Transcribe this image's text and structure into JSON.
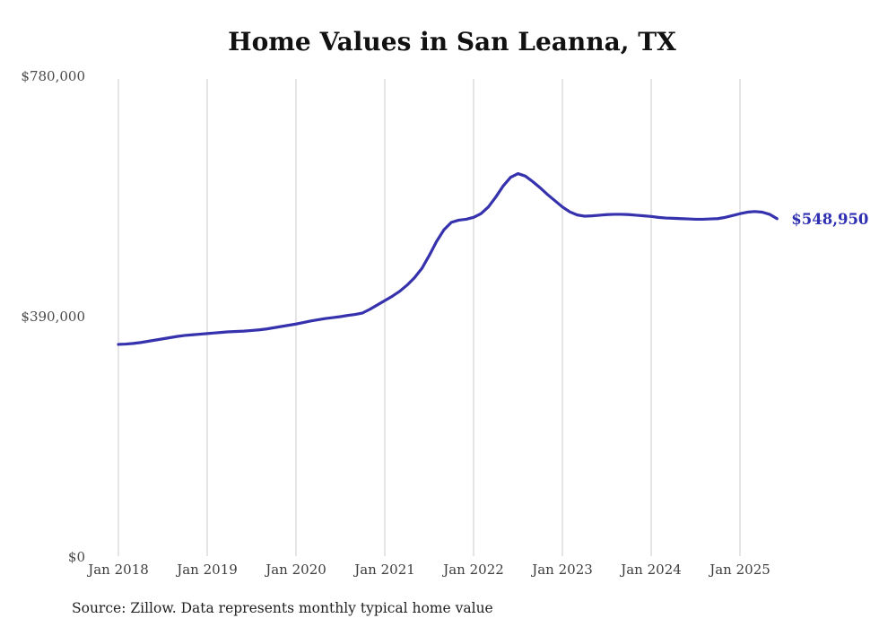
{
  "chart_data": {
    "type": "line",
    "title": "Home Values in San Leanna, TX",
    "xlabel": "",
    "ylabel": "",
    "ylim": [
      0,
      780000
    ],
    "grid": "vertical-only",
    "legend": "none",
    "line_color": "#3632ad",
    "end_label_color": "#2f2fb2",
    "gridline_color": "#cbcbcb",
    "end_label": "$548,950",
    "source": "Source: Zillow. Data represents monthly typical home value",
    "x_ticks": [
      "Jan 2018",
      "Jan 2019",
      "Jan 2020",
      "Jan 2021",
      "Jan 2022",
      "Jan 2023",
      "Jan 2024",
      "Jan 2025"
    ],
    "y_ticks": [
      {
        "label": "$780,000",
        "value": 780000
      },
      {
        "label": "$390,000",
        "value": 390000
      },
      {
        "label": "$0",
        "value": 0
      }
    ],
    "series": [
      {
        "name": "Typical home value (USD)",
        "start": "Jan 2018",
        "end": "Jun 2025",
        "frequency": "monthly",
        "values": [
          345000,
          345500,
          346500,
          348000,
          350000,
          352000,
          354000,
          356000,
          358000,
          359500,
          360500,
          361500,
          362500,
          363500,
          364500,
          365500,
          366000,
          366500,
          367500,
          368500,
          370000,
          372000,
          374000,
          376000,
          378000,
          380500,
          383000,
          385000,
          387000,
          388500,
          390000,
          392000,
          393500,
          396000,
          402000,
          409000,
          416000,
          423000,
          431000,
          441000,
          453000,
          468000,
          489000,
          512000,
          531000,
          543000,
          546500,
          548000,
          551000,
          557000,
          568000,
          584000,
          602000,
          616000,
          622000,
          618000,
          609000,
          599000,
          588000,
          578000,
          568000,
          560000,
          555000,
          553000,
          553500,
          554500,
          555500,
          556000,
          556000,
          555500,
          554500,
          553500,
          552500,
          551000,
          550000,
          549500,
          549000,
          548500,
          548000,
          548000,
          548500,
          549000,
          551000,
          554000,
          557000,
          559500,
          560500,
          559500,
          556000,
          548950
        ]
      }
    ]
  }
}
